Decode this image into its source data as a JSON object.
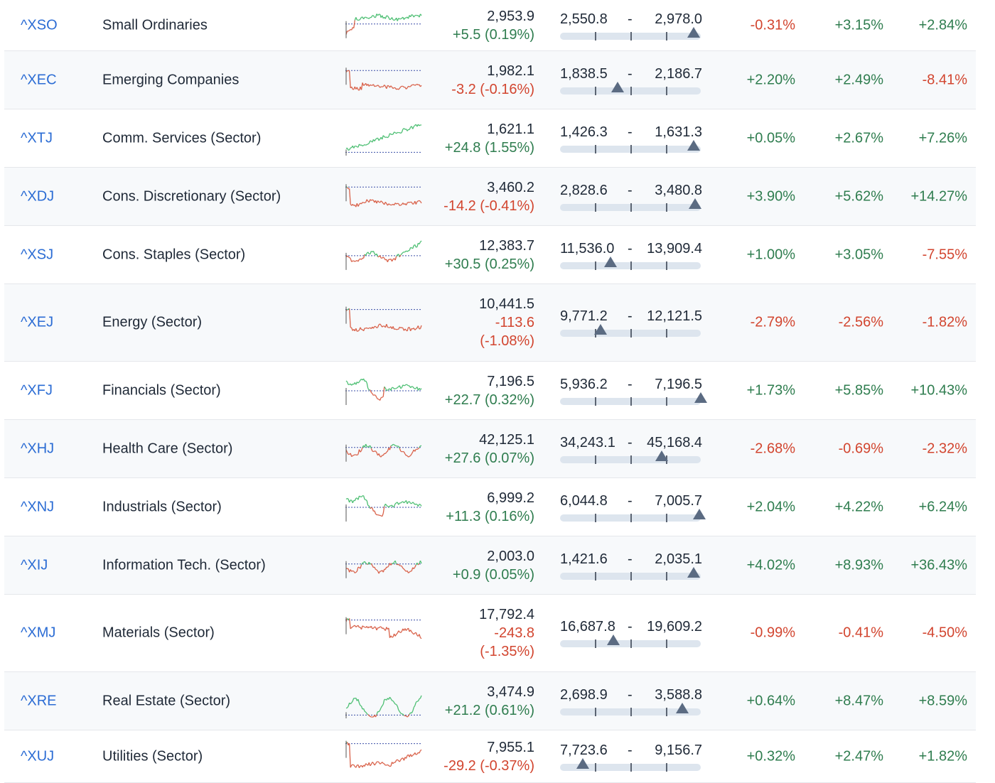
{
  "colors": {
    "up": "#2f7d4f",
    "down": "#d2452f",
    "link": "#2b6cd4",
    "spark_up": "#4dbf73",
    "spark_down": "#d9624a",
    "baseline": "#3b4fa8"
  },
  "rows": [
    {
      "code": "^XSO",
      "name": "Small Ordinaries",
      "last": "2,953.9",
      "change": "+5.5 (0.19%)",
      "change_lines": [
        "+5.5 (0.19%)"
      ],
      "dir": "up",
      "low": "2,550.8",
      "high": "2,978.0",
      "pos": 0.95,
      "p1": "-0.31%",
      "p1d": "down",
      "p2": "+3.15%",
      "p2d": "up",
      "p3": "+2.84%",
      "p3d": "up",
      "spark": "mixed_up"
    },
    {
      "code": "^XEC",
      "name": "Emerging Companies",
      "last": "1,982.1",
      "change": "-3.2 (-0.16%)",
      "change_lines": [
        "-3.2 (-0.16%)"
      ],
      "dir": "down",
      "low": "1,838.5",
      "high": "2,186.7",
      "pos": 0.41,
      "p1": "+2.20%",
      "p1d": "up",
      "p2": "+2.49%",
      "p2d": "up",
      "p3": "-8.41%",
      "p3d": "down",
      "spark": "down_flat"
    },
    {
      "code": "^XTJ",
      "name": "Comm. Services (Sector)",
      "last": "1,621.1",
      "change": "+24.8 (1.55%)",
      "change_lines": [
        "+24.8 (1.55%)"
      ],
      "dir": "up",
      "low": "1,426.3",
      "high": "1,631.3",
      "pos": 0.95,
      "p1": "+0.05%",
      "p1d": "up",
      "p2": "+2.67%",
      "p2d": "up",
      "p3": "+7.26%",
      "p3d": "up",
      "spark": "up_trend"
    },
    {
      "code": "^XDJ",
      "name": "Cons. Discretionary (Sector)",
      "last": "3,460.2",
      "change": "-14.2 (-0.41%)",
      "change_lines": [
        "-14.2 (-0.41%)"
      ],
      "dir": "down",
      "low": "2,828.6",
      "high": "3,480.8",
      "pos": 0.96,
      "p1": "+3.90%",
      "p1d": "up",
      "p2": "+5.62%",
      "p2d": "up",
      "p3": "+14.27%",
      "p3d": "up",
      "spark": "down_flat"
    },
    {
      "code": "^XSJ",
      "name": "Cons. Staples (Sector)",
      "last": "12,383.7",
      "change": "+30.5 (0.25%)",
      "change_lines": [
        "+30.5 (0.25%)"
      ],
      "dir": "up",
      "low": "11,536.0",
      "high": "13,909.4",
      "pos": 0.36,
      "p1": "+1.00%",
      "p1d": "up",
      "p2": "+3.05%",
      "p2d": "up",
      "p3": "-7.55%",
      "p3d": "down",
      "spark": "mixed_up_end"
    },
    {
      "code": "^XEJ",
      "name": "Energy (Sector)",
      "last": "10,441.5",
      "change": "-113.6 (-1.08%)",
      "change_lines": [
        "-113.6",
        "(-1.08%)"
      ],
      "dir": "down",
      "low": "9,771.2",
      "high": "12,121.5",
      "pos": 0.29,
      "p1": "-2.79%",
      "p1d": "down",
      "p2": "-2.56%",
      "p2d": "down",
      "p3": "-1.82%",
      "p3d": "down",
      "spark": "down_low"
    },
    {
      "code": "^XFJ",
      "name": "Financials (Sector)",
      "last": "7,196.5",
      "change": "+22.7 (0.32%)",
      "change_lines": [
        "+22.7 (0.32%)"
      ],
      "dir": "up",
      "low": "5,936.2",
      "high": "7,196.5",
      "pos": 1.0,
      "p1": "+1.73%",
      "p1d": "up",
      "p2": "+5.85%",
      "p2d": "up",
      "p3": "+10.43%",
      "p3d": "up",
      "spark": "mixed_dip"
    },
    {
      "code": "^XHJ",
      "name": "Health Care (Sector)",
      "last": "42,125.1",
      "change": "+27.6 (0.07%)",
      "change_lines": [
        "+27.6 (0.07%)"
      ],
      "dir": "up",
      "low": "34,243.1",
      "high": "45,168.4",
      "pos": 0.72,
      "p1": "-2.68%",
      "p1d": "down",
      "p2": "-0.69%",
      "p2d": "down",
      "p3": "-2.32%",
      "p3d": "down",
      "spark": "volatile"
    },
    {
      "code": "^XNJ",
      "name": "Industrials (Sector)",
      "last": "6,999.2",
      "change": "+11.3 (0.16%)",
      "change_lines": [
        "+11.3 (0.16%)"
      ],
      "dir": "up",
      "low": "6,044.8",
      "high": "7,005.7",
      "pos": 0.99,
      "p1": "+2.04%",
      "p1d": "up",
      "p2": "+4.22%",
      "p2d": "up",
      "p3": "+6.24%",
      "p3d": "up",
      "spark": "mixed_dip"
    },
    {
      "code": "^XIJ",
      "name": "Information Tech. (Sector)",
      "last": "2,003.0",
      "change": "+0.9 (0.05%)",
      "change_lines": [
        "+0.9 (0.05%)"
      ],
      "dir": "up",
      "low": "1,421.6",
      "high": "2,035.1",
      "pos": 0.95,
      "p1": "+4.02%",
      "p1d": "up",
      "p2": "+8.93%",
      "p2d": "up",
      "p3": "+36.43%",
      "p3d": "up",
      "spark": "volatile"
    },
    {
      "code": "^XMJ",
      "name": "Materials (Sector)",
      "last": "17,792.4",
      "change": "-243.8 (-1.35%)",
      "change_lines": [
        "-243.8",
        "(-1.35%)"
      ],
      "dir": "down",
      "low": "16,687.8",
      "high": "19,609.2",
      "pos": 0.38,
      "p1": "-0.99%",
      "p1d": "down",
      "p2": "-0.41%",
      "p2d": "down",
      "p3": "-4.50%",
      "p3d": "down",
      "spark": "down_drop"
    },
    {
      "code": "^XRE",
      "name": "Real Estate (Sector)",
      "last": "3,474.9",
      "change": "+21.2 (0.61%)",
      "change_lines": [
        "+21.2 (0.61%)"
      ],
      "dir": "up",
      "low": "2,698.9",
      "high": "3,588.8",
      "pos": 0.87,
      "p1": "+0.64%",
      "p1d": "up",
      "p2": "+8.47%",
      "p2d": "up",
      "p3": "+8.59%",
      "p3d": "up",
      "spark": "up_choppy"
    },
    {
      "code": "^XUJ",
      "name": "Utilities (Sector)",
      "last": "7,955.1",
      "change": "-29.2 (-0.37%)",
      "change_lines": [
        "-29.2 (-0.37%)"
      ],
      "dir": "down",
      "low": "7,723.6",
      "high": "9,156.7",
      "pos": 0.16,
      "p1": "+0.32%",
      "p1d": "up",
      "p2": "+2.47%",
      "p2d": "up",
      "p3": "+1.82%",
      "p3d": "up",
      "spark": "down_recover"
    }
  ]
}
